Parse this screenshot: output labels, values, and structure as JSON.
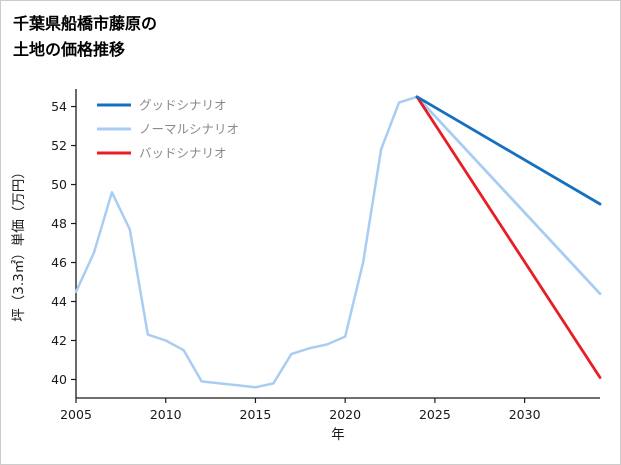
{
  "page": {
    "title_line1": "千葉県船橋市藤原の",
    "title_line2": "土地の価格推移"
  },
  "chart_data": {
    "type": "line",
    "title": "千葉県船橋市藤原の土地の価格推移",
    "xlabel": "年",
    "ylabel": "坪（3.3㎡）単価（万円）",
    "xlim": [
      2005,
      2034.2
    ],
    "ylim": [
      39.05,
      54.9
    ],
    "x_ticks": [
      2005,
      2010,
      2015,
      2020,
      2025,
      2030
    ],
    "y_ticks": [
      40,
      42,
      44,
      46,
      48,
      50,
      52,
      54
    ],
    "grid": false,
    "legend_position": "upper-left",
    "axis_color": "#1a1a1a",
    "tick_label_color": "#1a1a1a",
    "legend_text_color": "#8a8a8a",
    "series": [
      {
        "id": "historical",
        "label": "",
        "in_legend": false,
        "color": "#a9cdf2",
        "width": 2.5,
        "x": [
          2005,
          2006,
          2007,
          2008,
          2009,
          2010,
          2011,
          2012,
          2013,
          2014,
          2015,
          2016,
          2017,
          2018,
          2019,
          2020,
          2021,
          2022,
          2023,
          2024
        ],
        "y": [
          44.5,
          46.5,
          49.6,
          47.7,
          42.3,
          42.0,
          41.5,
          39.9,
          39.8,
          39.7,
          39.6,
          39.8,
          41.3,
          41.6,
          41.8,
          42.2,
          46.0,
          51.8,
          54.2,
          54.5
        ]
      },
      {
        "id": "normal",
        "label": "ノーマルシナリオ",
        "in_legend": true,
        "color": "#a9cdf2",
        "width": 2.8,
        "x": [
          2024,
          2034.2
        ],
        "y": [
          54.5,
          44.4
        ]
      },
      {
        "id": "bad",
        "label": "バッドシナリオ",
        "in_legend": true,
        "color": "#e81e25",
        "width": 2.8,
        "x": [
          2024,
          2034.2
        ],
        "y": [
          54.5,
          40.1
        ]
      },
      {
        "id": "good",
        "label": "グッドシナリオ",
        "in_legend": true,
        "color": "#1570c0",
        "width": 2.8,
        "x": [
          2024,
          2034.2
        ],
        "y": [
          54.5,
          49.0
        ]
      }
    ],
    "legend_order": [
      "good",
      "normal",
      "bad"
    ]
  }
}
